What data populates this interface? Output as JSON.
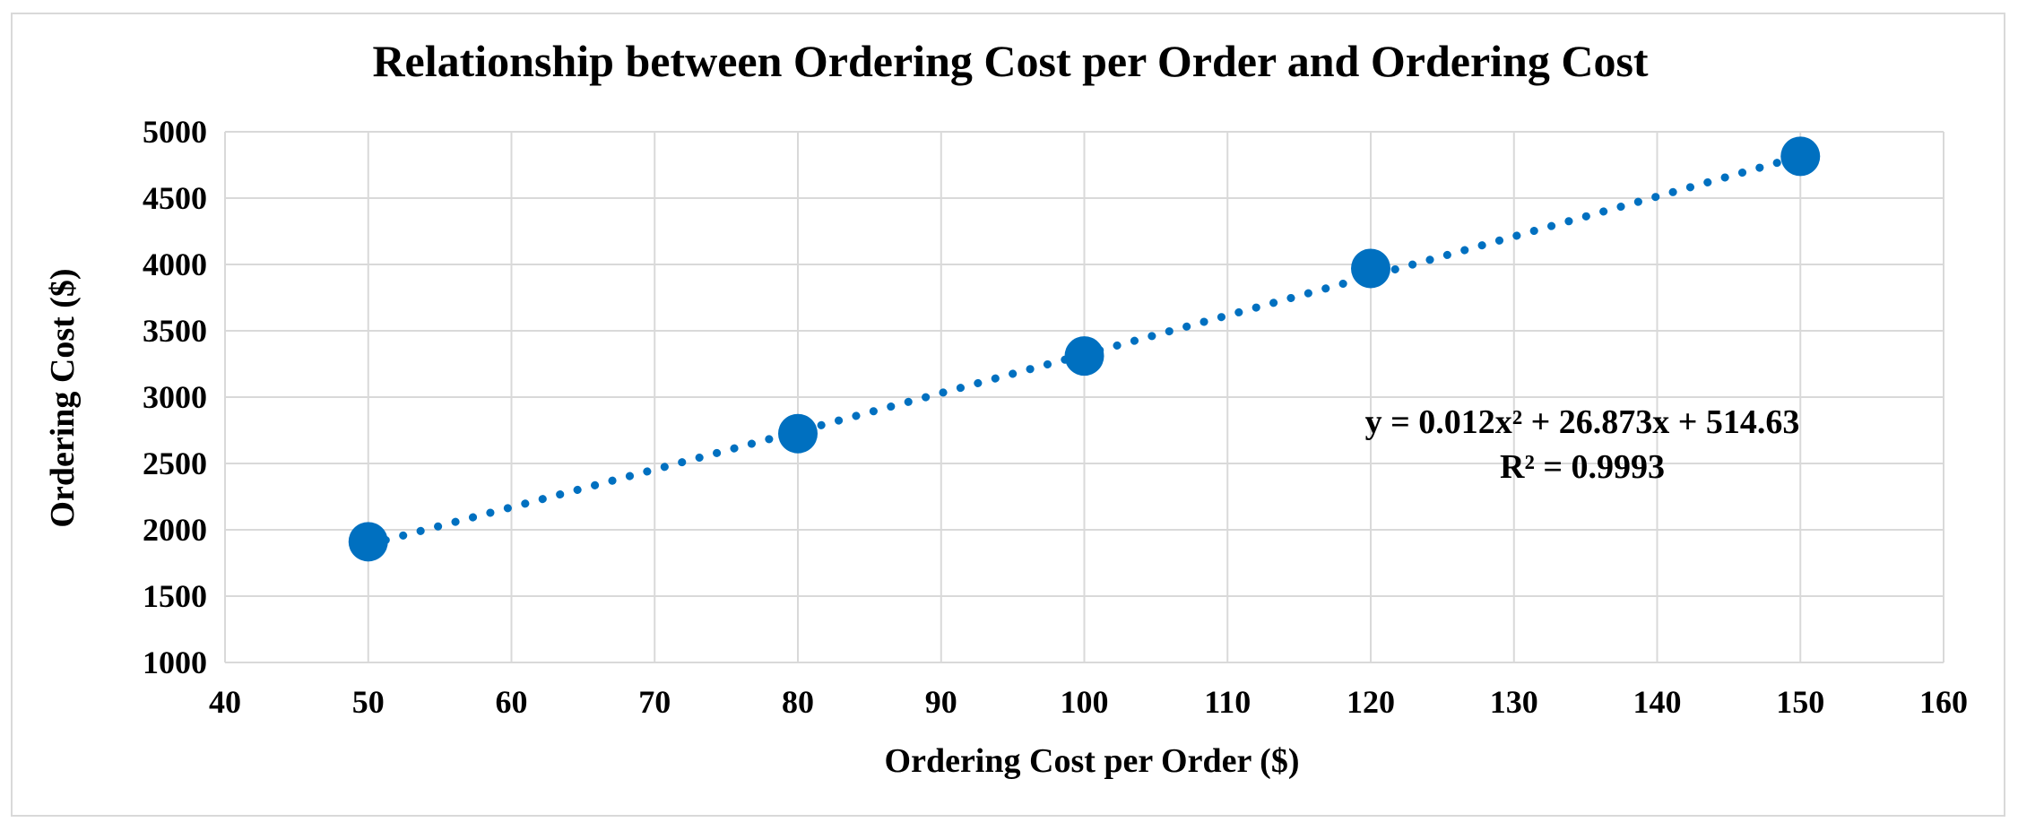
{
  "chart_data": {
    "type": "scatter",
    "title": "Relationship between Ordering Cost per Order and Ordering Cost",
    "xlabel": "Ordering Cost per Order ($)",
    "ylabel": "Ordering Cost  ($)",
    "xlim": [
      40,
      160
    ],
    "ylim": [
      1000,
      5000
    ],
    "x_ticks": [
      40,
      50,
      60,
      70,
      80,
      90,
      100,
      110,
      120,
      130,
      140,
      150,
      160
    ],
    "y_ticks": [
      1000,
      1500,
      2000,
      2500,
      3000,
      3500,
      4000,
      4500,
      5000
    ],
    "grid": true,
    "series": [
      {
        "x": [
          50,
          80,
          100,
          120,
          150
        ],
        "y": [
          1910,
          2725,
          3310,
          3970,
          4815
        ]
      }
    ],
    "trendline": {
      "type": "polynomial",
      "order": 2,
      "coefficients": [
        0.012,
        26.873,
        514.63
      ],
      "style": "dotted",
      "equation": "y = 0.012x² + 26.873x + 514.63",
      "r_squared": "R² = 0.9993"
    },
    "colors": {
      "marker": "#0070c0",
      "trendline": "#0070c0",
      "grid": "#d9d9d9"
    }
  }
}
